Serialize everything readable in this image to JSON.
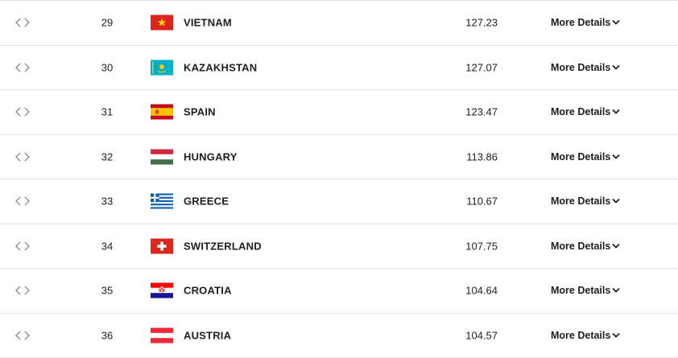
{
  "table": {
    "rows": [
      {
        "rank": 29,
        "country": "VIETNAM",
        "points": 127.23,
        "link": "More Details"
      },
      {
        "rank": 30,
        "country": "KAZAKHSTAN",
        "points": 127.07,
        "link": "More Details"
      },
      {
        "rank": 31,
        "country": "SPAIN",
        "points": 123.47,
        "link": "More Details"
      },
      {
        "rank": 32,
        "country": "HUNGARY",
        "points": 113.86,
        "link": "More Details"
      },
      {
        "rank": 33,
        "country": "GREECE",
        "points": 110.67,
        "link": "More Details"
      },
      {
        "rank": 34,
        "country": "SWITZERLAND",
        "points": 107.75,
        "link": "More Details"
      },
      {
        "rank": 35,
        "country": "CROATIA",
        "points": 104.64,
        "link": "More Details"
      },
      {
        "rank": 36,
        "country": "AUSTRIA",
        "points": 104.57,
        "link": "More Details"
      }
    ]
  }
}
